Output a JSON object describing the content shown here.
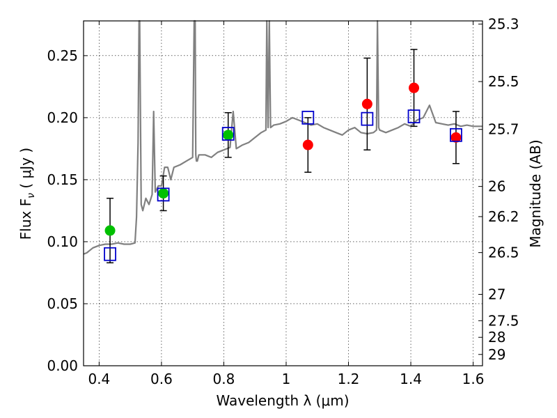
{
  "chart_data": {
    "type": "scatter",
    "xlabel": "Wavelength  λ (μm)",
    "ylabel": "Flux  F",
    "ylabel_sub": "ν",
    "ylabel_unit": " ( μJy )",
    "y2label": "Magnitude (AB)",
    "xlim": [
      0.35,
      1.63
    ],
    "ylim": [
      0.0,
      0.278
    ],
    "x_ticks": [
      0.4,
      0.6,
      0.8,
      1.0,
      1.2,
      1.4,
      1.6
    ],
    "x_tick_labels": [
      "0.4",
      "0.6",
      "0.8",
      "1",
      "1.2",
      "1.4",
      "1.6"
    ],
    "y_ticks": [
      0.0,
      0.05,
      0.1,
      0.15,
      0.2,
      0.25
    ],
    "y_tick_labels": [
      "0.00",
      "0.05",
      "0.10",
      "0.15",
      "0.20",
      "0.25"
    ],
    "y2_tick_labels": [
      "25.3",
      "25.5",
      "25.7",
      "26",
      "26.2",
      "26.5",
      "27",
      "27.5",
      "28",
      "29"
    ],
    "grid": true,
    "colors": {
      "spectrum": "#808080",
      "optical_points": "#00c000",
      "ir_points": "#ff0000",
      "model_squares": "#0000cc",
      "error_bars": "#000000"
    },
    "series": [
      {
        "marker": "circle",
        "color": "#00c000",
        "points": [
          {
            "x": 0.435,
            "y": 0.109,
            "err_low": 0.026,
            "err_high": 0.026
          },
          {
            "x": 0.606,
            "y": 0.139,
            "err_low": 0.014,
            "err_high": 0.014
          },
          {
            "x": 0.814,
            "y": 0.186,
            "err_low": 0.018,
            "err_high": 0.018
          }
        ]
      },
      {
        "marker": "circle",
        "color": "#ff0000",
        "points": [
          {
            "x": 1.07,
            "y": 0.178,
            "err_low": 0.022,
            "err_high": 0.022
          },
          {
            "x": 1.26,
            "y": 0.211,
            "err_low": 0.037,
            "err_high": 0.037
          },
          {
            "x": 1.41,
            "y": 0.224,
            "err_low": 0.031,
            "err_high": 0.031
          },
          {
            "x": 1.545,
            "y": 0.184,
            "err_low": 0.021,
            "err_high": 0.021
          }
        ]
      },
      {
        "marker": "open-square",
        "color": "#0000cc",
        "points": [
          {
            "x": 0.435,
            "y": 0.09
          },
          {
            "x": 0.606,
            "y": 0.138
          },
          {
            "x": 0.814,
            "y": 0.187
          },
          {
            "x": 1.07,
            "y": 0.2
          },
          {
            "x": 1.26,
            "y": 0.199
          },
          {
            "x": 1.41,
            "y": 0.201
          },
          {
            "x": 1.545,
            "y": 0.186
          }
        ]
      },
      {
        "type": "line",
        "color": "#808080",
        "x": [
          0.35,
          0.36,
          0.38,
          0.4,
          0.42,
          0.44,
          0.46,
          0.48,
          0.5,
          0.515,
          0.52,
          0.525,
          0.528,
          0.53,
          0.535,
          0.54,
          0.55,
          0.56,
          0.57,
          0.575,
          0.58,
          0.59,
          0.6,
          0.61,
          0.62,
          0.63,
          0.64,
          0.66,
          0.68,
          0.7,
          0.705,
          0.708,
          0.71,
          0.712,
          0.715,
          0.72,
          0.74,
          0.76,
          0.78,
          0.8,
          0.82,
          0.83,
          0.84,
          0.86,
          0.88,
          0.9,
          0.92,
          0.935,
          0.938,
          0.942,
          0.946,
          0.95,
          0.96,
          0.98,
          1.0,
          1.02,
          1.04,
          1.06,
          1.08,
          1.1,
          1.12,
          1.14,
          1.16,
          1.18,
          1.2,
          1.22,
          1.24,
          1.26,
          1.28,
          1.29,
          1.293,
          1.297,
          1.3,
          1.32,
          1.34,
          1.36,
          1.38,
          1.4,
          1.42,
          1.44,
          1.46,
          1.48,
          1.5,
          1.52,
          1.54,
          1.56,
          1.58,
          1.6,
          1.63
        ],
        "y": [
          0.09,
          0.091,
          0.095,
          0.097,
          0.098,
          0.098,
          0.099,
          0.098,
          0.098,
          0.099,
          0.12,
          0.18,
          0.28,
          0.28,
          0.13,
          0.125,
          0.135,
          0.13,
          0.138,
          0.205,
          0.14,
          0.145,
          0.145,
          0.16,
          0.16,
          0.15,
          0.16,
          0.162,
          0.165,
          0.168,
          0.28,
          0.28,
          0.17,
          0.165,
          0.165,
          0.17,
          0.17,
          0.168,
          0.172,
          0.174,
          0.176,
          0.205,
          0.175,
          0.178,
          0.18,
          0.184,
          0.188,
          0.19,
          0.28,
          0.192,
          0.28,
          0.192,
          0.194,
          0.195,
          0.197,
          0.2,
          0.198,
          0.196,
          0.194,
          0.195,
          0.192,
          0.19,
          0.188,
          0.186,
          0.19,
          0.192,
          0.188,
          0.187,
          0.188,
          0.19,
          0.28,
          0.192,
          0.19,
          0.188,
          0.19,
          0.192,
          0.195,
          0.193,
          0.198,
          0.2,
          0.21,
          0.196,
          0.195,
          0.194,
          0.195,
          0.193,
          0.194,
          0.193,
          0.193
        ]
      }
    ]
  }
}
